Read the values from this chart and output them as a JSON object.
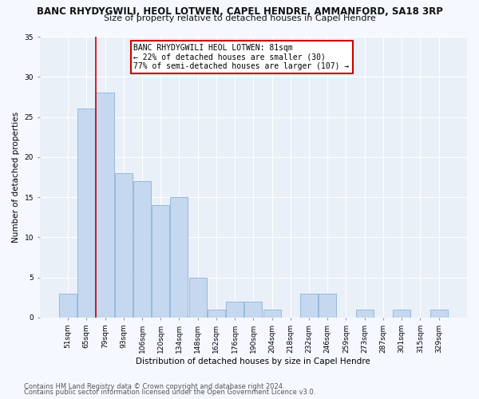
{
  "title": "BANC RHYDYGWILI, HEOL LOTWEN, CAPEL HENDRE, AMMANFORD, SA18 3RP",
  "subtitle": "Size of property relative to detached houses in Capel Hendre",
  "xlabel": "Distribution of detached houses by size in Capel Hendre",
  "ylabel": "Number of detached properties",
  "footnote1": "Contains HM Land Registry data © Crown copyright and database right 2024.",
  "footnote2": "Contains public sector information licensed under the Open Government Licence v3.0.",
  "bar_labels": [
    "51sqm",
    "65sqm",
    "79sqm",
    "93sqm",
    "106sqm",
    "120sqm",
    "134sqm",
    "148sqm",
    "162sqm",
    "176sqm",
    "190sqm",
    "204sqm",
    "218sqm",
    "232sqm",
    "246sqm",
    "259sqm",
    "273sqm",
    "287sqm",
    "301sqm",
    "315sqm",
    "329sqm"
  ],
  "bar_values": [
    3,
    26,
    28,
    18,
    17,
    14,
    15,
    5,
    1,
    2,
    2,
    1,
    0,
    3,
    3,
    0,
    1,
    0,
    1,
    0,
    1
  ],
  "bar_color": "#c5d8f0",
  "bar_edge_color": "#8ab4d8",
  "red_line_x": 1.5,
  "red_line_label": "BANC RHYDYGWILI HEOL LOTWEN: 81sqm",
  "annotation_line1": "← 22% of detached houses are smaller (30)",
  "annotation_line2": "77% of semi-detached houses are larger (107) →",
  "ylim": [
    0,
    35
  ],
  "yticks": [
    0,
    5,
    10,
    15,
    20,
    25,
    30,
    35
  ],
  "bg_color": "#eaf0f8",
  "plot_bg_color": "#eaf0f8",
  "fig_bg_color": "#f5f8ff",
  "title_fontsize": 8.5,
  "subtitle_fontsize": 8,
  "axis_label_fontsize": 7.5,
  "tick_fontsize": 6.5,
  "annot_fontsize": 7,
  "footnote_fontsize": 6
}
